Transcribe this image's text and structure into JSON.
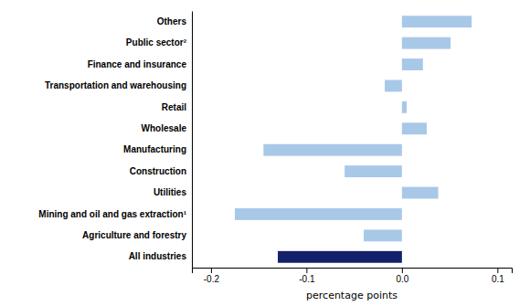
{
  "chart_data": {
    "type": "bar",
    "orientation": "horizontal",
    "categories": [
      "Others",
      "Public sector²",
      "Finance and insurance",
      "Transportation and warehousing",
      "Retail",
      "Wholesale",
      "Manufacturing",
      "Construction",
      "Utilities",
      "Mining and oil and gas extraction¹",
      "Agriculture and forestry",
      "All industries"
    ],
    "values": [
      0.073,
      0.051,
      0.022,
      -0.018,
      0.005,
      0.026,
      -0.145,
      -0.06,
      0.038,
      -0.175,
      -0.04,
      -0.13
    ],
    "colors": [
      "#a8c8e8",
      "#a8c8e8",
      "#a8c8e8",
      "#a8c8e8",
      "#a8c8e8",
      "#a8c8e8",
      "#a8c8e8",
      "#a8c8e8",
      "#a8c8e8",
      "#a8c8e8",
      "#a8c8e8",
      "#15206b"
    ],
    "xlabel": "percentage points",
    "xlim": [
      -0.22,
      0.115
    ],
    "xticks": [
      -0.2,
      -0.1,
      {
        "value": 0,
        "label": "0.0"
      },
      0.1
    ]
  }
}
